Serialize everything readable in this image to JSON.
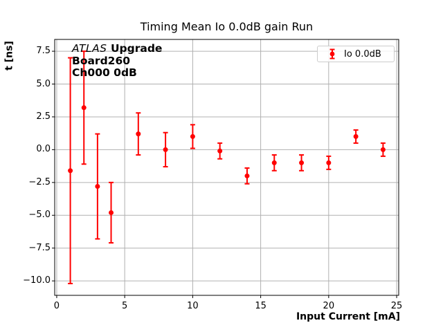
{
  "chart_data": {
    "type": "scatter",
    "subtype": "errorbar",
    "title": "Timing Mean Io 0.0dB gain Run",
    "xlabel": "Input Current [mA]",
    "ylabel": "t [ns]",
    "legend": {
      "label": "Io 0.0dB",
      "position": "upper right"
    },
    "annotation": {
      "atlas": "ATLAS",
      "upgrade": "Upgrade",
      "line2": "Board260",
      "line3": "Ch000 0dB"
    },
    "series": [
      {
        "name": "Io 0.0dB",
        "x": [
          1,
          2,
          3,
          4,
          6,
          8,
          10,
          12,
          14,
          16,
          18,
          20,
          22,
          24
        ],
        "y": [
          -1.6,
          3.2,
          -2.8,
          -4.8,
          1.2,
          0.0,
          1.0,
          -0.1,
          -2.0,
          -1.0,
          -1.0,
          -1.0,
          1.0,
          0.0
        ],
        "yerr": [
          8.6,
          4.3,
          4.0,
          2.3,
          1.6,
          1.3,
          0.9,
          0.6,
          0.6,
          0.6,
          0.6,
          0.5,
          0.5,
          0.5
        ]
      }
    ],
    "xlim": [
      -0.15,
      25.15
    ],
    "ylim": [
      -11.1,
      8.4
    ],
    "xticks": [
      0,
      5,
      10,
      15,
      20,
      25
    ],
    "yticks": [
      7.5,
      5.0,
      2.5,
      0.0,
      -2.5,
      -5.0,
      -7.5,
      -10.0
    ],
    "grid": true,
    "colors": {
      "marker": "#ff0000",
      "grid": "#b0b0b0",
      "spine": "#000000",
      "legend_border": "#cccccc"
    }
  }
}
